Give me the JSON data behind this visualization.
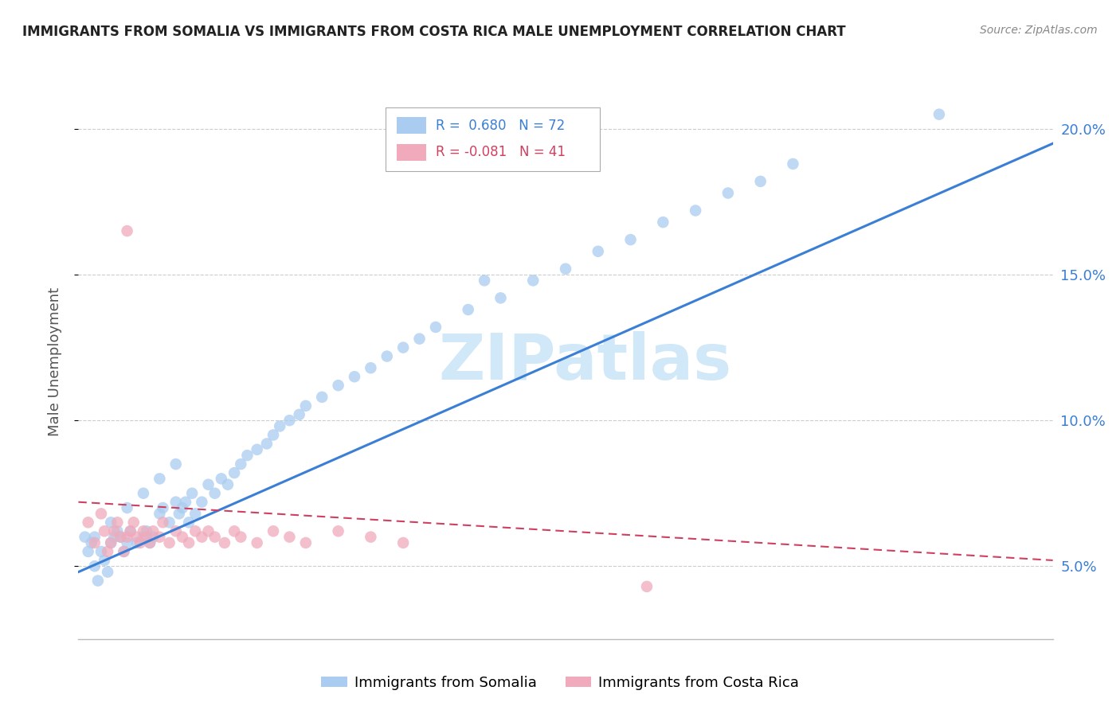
{
  "title": "IMMIGRANTS FROM SOMALIA VS IMMIGRANTS FROM COSTA RICA MALE UNEMPLOYMENT CORRELATION CHART",
  "source": "Source: ZipAtlas.com",
  "ylabel": "Male Unemployment",
  "xlim": [
    0.0,
    0.3
  ],
  "ylim": [
    0.025,
    0.215
  ],
  "yticks": [
    0.05,
    0.1,
    0.15,
    0.2
  ],
  "ytick_labels": [
    "5.0%",
    "10.0%",
    "15.0%",
    "20.0%"
  ],
  "somalia_color": "#aaccf0",
  "costa_rica_color": "#f0aabb",
  "somalia_line_color": "#3a7fd5",
  "costa_rica_line_color": "#d04060",
  "watermark_color": "#d0e8f8",
  "somalia_line": {
    "x0": 0.0,
    "y0": 0.048,
    "x1": 0.3,
    "y1": 0.195
  },
  "costa_rica_line": {
    "x0": 0.0,
    "y0": 0.072,
    "x1": 0.3,
    "y1": 0.052
  },
  "somalia_scatter_x": [
    0.002,
    0.003,
    0.004,
    0.005,
    0.006,
    0.007,
    0.008,
    0.009,
    0.01,
    0.011,
    0.012,
    0.013,
    0.014,
    0.015,
    0.016,
    0.018,
    0.02,
    0.021,
    0.022,
    0.023,
    0.025,
    0.026,
    0.028,
    0.03,
    0.031,
    0.032,
    0.033,
    0.034,
    0.035,
    0.036,
    0.038,
    0.04,
    0.042,
    0.044,
    0.046,
    0.048,
    0.05,
    0.052,
    0.055,
    0.058,
    0.06,
    0.062,
    0.065,
    0.068,
    0.07,
    0.075,
    0.08,
    0.085,
    0.09,
    0.095,
    0.1,
    0.105,
    0.11,
    0.12,
    0.13,
    0.14,
    0.15,
    0.16,
    0.17,
    0.18,
    0.19,
    0.2,
    0.21,
    0.22,
    0.005,
    0.01,
    0.015,
    0.02,
    0.025,
    0.03,
    0.265,
    0.125
  ],
  "somalia_scatter_y": [
    0.06,
    0.055,
    0.058,
    0.05,
    0.045,
    0.055,
    0.052,
    0.048,
    0.058,
    0.06,
    0.062,
    0.06,
    0.055,
    0.058,
    0.062,
    0.058,
    0.06,
    0.062,
    0.058,
    0.06,
    0.068,
    0.07,
    0.065,
    0.072,
    0.068,
    0.07,
    0.072,
    0.065,
    0.075,
    0.068,
    0.072,
    0.078,
    0.075,
    0.08,
    0.078,
    0.082,
    0.085,
    0.088,
    0.09,
    0.092,
    0.095,
    0.098,
    0.1,
    0.102,
    0.105,
    0.108,
    0.112,
    0.115,
    0.118,
    0.122,
    0.125,
    0.128,
    0.132,
    0.138,
    0.142,
    0.148,
    0.152,
    0.158,
    0.162,
    0.168,
    0.172,
    0.178,
    0.182,
    0.188,
    0.06,
    0.065,
    0.07,
    0.075,
    0.08,
    0.085,
    0.205,
    0.148
  ],
  "costa_rica_scatter_x": [
    0.003,
    0.005,
    0.007,
    0.008,
    0.009,
    0.01,
    0.011,
    0.012,
    0.013,
    0.014,
    0.015,
    0.016,
    0.017,
    0.018,
    0.019,
    0.02,
    0.021,
    0.022,
    0.023,
    0.025,
    0.026,
    0.028,
    0.03,
    0.032,
    0.034,
    0.036,
    0.038,
    0.04,
    0.042,
    0.045,
    0.048,
    0.05,
    0.055,
    0.06,
    0.065,
    0.07,
    0.08,
    0.09,
    0.1,
    0.015,
    0.175
  ],
  "costa_rica_scatter_y": [
    0.065,
    0.058,
    0.068,
    0.062,
    0.055,
    0.058,
    0.062,
    0.065,
    0.06,
    0.055,
    0.06,
    0.062,
    0.065,
    0.06,
    0.058,
    0.062,
    0.06,
    0.058,
    0.062,
    0.06,
    0.065,
    0.058,
    0.062,
    0.06,
    0.058,
    0.062,
    0.06,
    0.062,
    0.06,
    0.058,
    0.062,
    0.06,
    0.058,
    0.062,
    0.06,
    0.058,
    0.062,
    0.06,
    0.058,
    0.165,
    0.043
  ]
}
